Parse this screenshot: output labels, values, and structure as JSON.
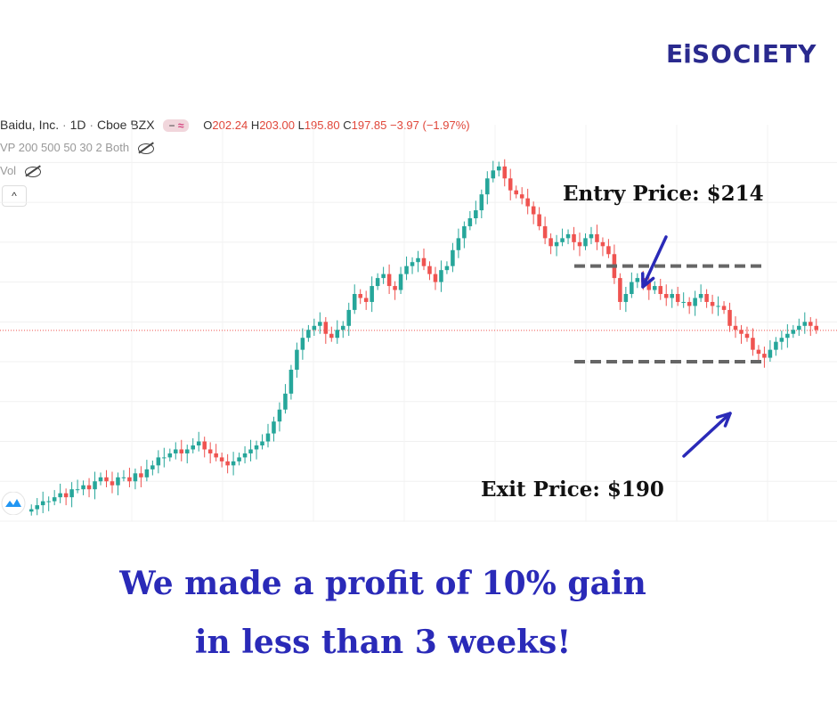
{
  "brand": {
    "logo_text": "E𝐢SOCIETY",
    "color": "#2a2a8e"
  },
  "legend": {
    "symbol": "Baidu, Inc.",
    "interval": "1D",
    "exchange": "Cboe BZX",
    "sep": "·",
    "open_label": "O",
    "open": "202.24",
    "high_label": "H",
    "high": "203.00",
    "low_label": "L",
    "low": "195.80",
    "close_label": "C",
    "close": "197.85",
    "change": "−3.97 (−1.97%)",
    "pill_minus": "−",
    "pill_approx": "≈"
  },
  "indicators": {
    "vp": "VP 200 500 50 30 2 Both",
    "vol": "Vol"
  },
  "collapse_icon": "^",
  "annotations": {
    "entry": "Entry Price: $214",
    "exit": "Exit Price: $190"
  },
  "headline": {
    "line1": "We made a profit of 10% gain",
    "line2": "in less than 3 weeks!"
  },
  "colors": {
    "up": "#26a69a",
    "down": "#ef5350",
    "arrow": "#2a2ab8",
    "level_line": "#666666",
    "price_line": "#ef5350"
  },
  "chart_data": {
    "type": "candlestick",
    "title": "Baidu, Inc. · 1D · Cboe BZX",
    "y_unit": "USD",
    "ylim": [
      150,
      245
    ],
    "levels": [
      {
        "name": "Entry Price",
        "value": 214
      },
      {
        "name": "Exit Price",
        "value": 190
      }
    ],
    "last_close": 197.85,
    "closes": [
      153,
      154,
      155,
      155,
      156,
      157,
      156,
      158,
      158,
      159,
      158,
      160,
      161,
      160,
      159,
      161,
      161,
      160,
      162,
      161,
      163,
      164,
      166,
      166,
      167,
      168,
      167,
      168,
      169,
      170,
      168,
      167,
      166,
      165,
      164,
      165,
      166,
      167,
      168,
      169,
      170,
      172,
      175,
      178,
      182,
      188,
      193,
      196,
      198,
      199,
      200,
      197,
      196,
      198,
      199,
      203,
      207,
      206,
      205,
      209,
      211,
      212,
      209,
      208,
      212,
      214,
      215,
      216,
      214,
      212,
      210,
      213,
      214,
      218,
      221,
      224,
      226,
      228,
      232,
      236,
      238,
      239,
      236,
      233,
      232,
      231,
      229,
      227,
      224,
      221,
      219,
      220,
      221,
      222,
      220,
      219,
      221,
      222,
      220,
      219,
      217,
      211,
      205,
      207,
      210,
      211,
      210,
      208,
      209,
      207,
      206,
      207,
      205,
      205,
      204,
      206,
      207,
      205,
      204,
      204,
      203,
      199,
      198,
      197,
      196,
      193,
      192,
      191,
      193,
      195,
      196,
      197,
      198,
      199,
      200,
      199,
      198
    ]
  }
}
